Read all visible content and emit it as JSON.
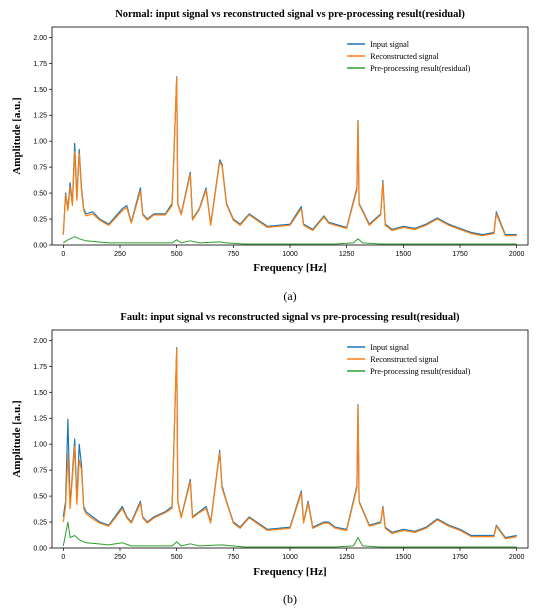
{
  "colors": {
    "input": "#1f77b4",
    "reconstructed": "#ff7f0e",
    "residual": "#2ca02c"
  },
  "chart_data": [
    {
      "type": "line",
      "title": "Normal: input signal vs reconstructed signal vs pre-processing result(residual)",
      "xlabel": "Frequency [Hz]",
      "ylabel": "Amplitude [a.u.]",
      "panel_label": "(a)",
      "xlim": [
        -50,
        2050
      ],
      "ylim": [
        0,
        2.1
      ],
      "xticks": [
        "0",
        "250",
        "500",
        "750",
        "1000",
        "1250",
        "1500",
        "1750",
        "2000"
      ],
      "yticks": [
        "0.00",
        "0.25",
        "0.50",
        "0.75",
        "1.00",
        "1.25",
        "1.50",
        "1.75",
        "2.00"
      ],
      "legend_position": "upper-right",
      "series": [
        {
          "name": "Input signal",
          "color_key": "input",
          "x": [
            0,
            10,
            20,
            30,
            40,
            50,
            60,
            70,
            80,
            90,
            100,
            130,
            160,
            200,
            260,
            280,
            300,
            340,
            350,
            370,
            400,
            450,
            480,
            500,
            505,
            520,
            560,
            570,
            600,
            630,
            650,
            690,
            700,
            720,
            750,
            780,
            820,
            900,
            1000,
            1050,
            1060,
            1100,
            1150,
            1170,
            1200,
            1250,
            1295,
            1300,
            1305,
            1350,
            1400,
            1410,
            1420,
            1450,
            1500,
            1550,
            1600,
            1650,
            1700,
            1750,
            1800,
            1850,
            1900,
            1910,
            1950,
            2000
          ],
          "y": [
            0.1,
            0.5,
            0.35,
            0.6,
            0.4,
            0.98,
            0.45,
            0.92,
            0.55,
            0.35,
            0.3,
            0.32,
            0.25,
            0.2,
            0.35,
            0.38,
            0.22,
            0.55,
            0.3,
            0.25,
            0.3,
            0.3,
            0.4,
            1.62,
            0.4,
            0.3,
            0.7,
            0.25,
            0.35,
            0.55,
            0.2,
            0.82,
            0.78,
            0.4,
            0.25,
            0.2,
            0.3,
            0.18,
            0.2,
            0.37,
            0.2,
            0.15,
            0.28,
            0.22,
            0.2,
            0.17,
            0.55,
            1.2,
            0.4,
            0.2,
            0.3,
            0.62,
            0.2,
            0.15,
            0.18,
            0.16,
            0.2,
            0.26,
            0.2,
            0.16,
            0.12,
            0.1,
            0.12,
            0.32,
            0.1,
            0.1
          ]
        },
        {
          "name": "Reconstructed signal",
          "color_key": "reconstructed",
          "x": [
            0,
            10,
            20,
            30,
            40,
            50,
            60,
            70,
            80,
            90,
            100,
            130,
            160,
            200,
            260,
            280,
            300,
            340,
            350,
            370,
            400,
            450,
            480,
            500,
            505,
            520,
            560,
            570,
            600,
            630,
            650,
            690,
            700,
            720,
            750,
            780,
            820,
            900,
            1000,
            1050,
            1060,
            1100,
            1150,
            1170,
            1200,
            1250,
            1295,
            1300,
            1305,
            1350,
            1400,
            1410,
            1420,
            1450,
            1500,
            1550,
            1600,
            1650,
            1700,
            1750,
            1800,
            1850,
            1900,
            1910,
            1950,
            2000
          ],
          "y": [
            0.1,
            0.48,
            0.33,
            0.56,
            0.38,
            0.9,
            0.43,
            0.88,
            0.52,
            0.33,
            0.28,
            0.3,
            0.24,
            0.19,
            0.33,
            0.36,
            0.21,
            0.52,
            0.29,
            0.24,
            0.29,
            0.29,
            0.38,
            1.61,
            0.39,
            0.29,
            0.68,
            0.24,
            0.34,
            0.53,
            0.19,
            0.8,
            0.76,
            0.39,
            0.24,
            0.19,
            0.29,
            0.17,
            0.19,
            0.35,
            0.19,
            0.14,
            0.27,
            0.21,
            0.19,
            0.16,
            0.53,
            1.19,
            0.39,
            0.19,
            0.29,
            0.6,
            0.19,
            0.14,
            0.17,
            0.15,
            0.19,
            0.25,
            0.19,
            0.15,
            0.11,
            0.09,
            0.11,
            0.3,
            0.09,
            0.09
          ]
        },
        {
          "name": "Pre-processing result(residual)",
          "color_key": "residual",
          "x": [
            0,
            20,
            50,
            70,
            100,
            150,
            200,
            300,
            400,
            480,
            500,
            520,
            560,
            600,
            690,
            720,
            800,
            1000,
            1200,
            1280,
            1300,
            1320,
            1400,
            1600,
            1800,
            2000
          ],
          "y": [
            0.02,
            0.05,
            0.08,
            0.06,
            0.04,
            0.03,
            0.02,
            0.02,
            0.02,
            0.02,
            0.05,
            0.02,
            0.04,
            0.02,
            0.03,
            0.02,
            0.01,
            0.01,
            0.01,
            0.02,
            0.06,
            0.02,
            0.01,
            0.01,
            0.01,
            0.01
          ]
        }
      ]
    },
    {
      "type": "line",
      "title": "Fault: input signal vs reconstructed signal vs pre-processing result(residual)",
      "xlabel": "Frequency [Hz]",
      "ylabel": "Amplitude [a.u.]",
      "panel_label": "(b)",
      "xlim": [
        -50,
        2050
      ],
      "ylim": [
        0,
        2.1
      ],
      "xticks": [
        "0",
        "250",
        "500",
        "750",
        "1000",
        "1250",
        "1500",
        "1750",
        "2000"
      ],
      "yticks": [
        "0.00",
        "0.25",
        "0.50",
        "0.75",
        "1.00",
        "1.25",
        "1.50",
        "1.75",
        "2.00"
      ],
      "legend_position": "upper-right",
      "series": [
        {
          "name": "Input signal",
          "color_key": "input",
          "x": [
            0,
            10,
            20,
            30,
            40,
            50,
            60,
            70,
            80,
            90,
            100,
            130,
            160,
            200,
            260,
            280,
            300,
            340,
            350,
            370,
            400,
            450,
            480,
            500,
            505,
            520,
            560,
            570,
            600,
            630,
            650,
            690,
            700,
            720,
            750,
            780,
            820,
            900,
            1000,
            1050,
            1060,
            1080,
            1100,
            1150,
            1170,
            1200,
            1250,
            1295,
            1300,
            1305,
            1350,
            1400,
            1410,
            1420,
            1450,
            1500,
            1550,
            1600,
            1650,
            1700,
            1750,
            1800,
            1850,
            1900,
            1910,
            1950,
            2000
          ],
          "y": [
            0.3,
            0.45,
            1.24,
            0.4,
            0.72,
            1.05,
            0.45,
            1.0,
            0.8,
            0.4,
            0.35,
            0.3,
            0.25,
            0.22,
            0.4,
            0.3,
            0.25,
            0.45,
            0.3,
            0.25,
            0.3,
            0.35,
            0.4,
            1.93,
            0.45,
            0.3,
            0.66,
            0.3,
            0.35,
            0.4,
            0.25,
            0.94,
            0.6,
            0.45,
            0.25,
            0.2,
            0.3,
            0.18,
            0.2,
            0.55,
            0.25,
            0.45,
            0.2,
            0.25,
            0.25,
            0.2,
            0.18,
            0.6,
            1.38,
            0.45,
            0.22,
            0.25,
            0.4,
            0.2,
            0.15,
            0.18,
            0.16,
            0.2,
            0.28,
            0.22,
            0.18,
            0.12,
            0.12,
            0.12,
            0.22,
            0.1,
            0.12
          ]
        },
        {
          "name": "Reconstructed signal",
          "color_key": "reconstructed",
          "x": [
            0,
            10,
            20,
            30,
            40,
            50,
            60,
            70,
            80,
            90,
            100,
            130,
            160,
            200,
            260,
            280,
            300,
            340,
            350,
            370,
            400,
            450,
            480,
            500,
            505,
            520,
            560,
            570,
            600,
            630,
            650,
            690,
            700,
            720,
            750,
            780,
            820,
            900,
            1000,
            1050,
            1060,
            1080,
            1100,
            1150,
            1170,
            1200,
            1250,
            1295,
            1300,
            1305,
            1350,
            1400,
            1410,
            1420,
            1450,
            1500,
            1550,
            1600,
            1650,
            1700,
            1750,
            1800,
            1850,
            1900,
            1910,
            1950,
            2000
          ],
          "y": [
            0.25,
            0.4,
            0.9,
            0.38,
            0.68,
            0.98,
            0.42,
            0.85,
            0.75,
            0.38,
            0.33,
            0.28,
            0.24,
            0.21,
            0.38,
            0.29,
            0.24,
            0.43,
            0.29,
            0.24,
            0.29,
            0.34,
            0.38,
            1.92,
            0.44,
            0.29,
            0.64,
            0.29,
            0.34,
            0.38,
            0.24,
            0.92,
            0.58,
            0.44,
            0.24,
            0.19,
            0.29,
            0.17,
            0.19,
            0.53,
            0.24,
            0.43,
            0.19,
            0.24,
            0.24,
            0.19,
            0.17,
            0.58,
            1.37,
            0.44,
            0.21,
            0.24,
            0.39,
            0.19,
            0.14,
            0.17,
            0.15,
            0.19,
            0.27,
            0.21,
            0.17,
            0.11,
            0.11,
            0.11,
            0.21,
            0.09,
            0.11
          ]
        },
        {
          "name": "Pre-processing result(residual)",
          "color_key": "residual",
          "x": [
            0,
            20,
            30,
            50,
            70,
            100,
            150,
            200,
            260,
            300,
            400,
            480,
            500,
            520,
            560,
            600,
            700,
            800,
            1000,
            1200,
            1280,
            1300,
            1320,
            1400,
            1600,
            1800,
            2000
          ],
          "y": [
            0.02,
            0.25,
            0.1,
            0.12,
            0.08,
            0.05,
            0.04,
            0.03,
            0.05,
            0.02,
            0.02,
            0.02,
            0.06,
            0.02,
            0.04,
            0.02,
            0.03,
            0.01,
            0.01,
            0.01,
            0.02,
            0.1,
            0.02,
            0.01,
            0.01,
            0.01,
            0.01
          ]
        }
      ]
    }
  ]
}
